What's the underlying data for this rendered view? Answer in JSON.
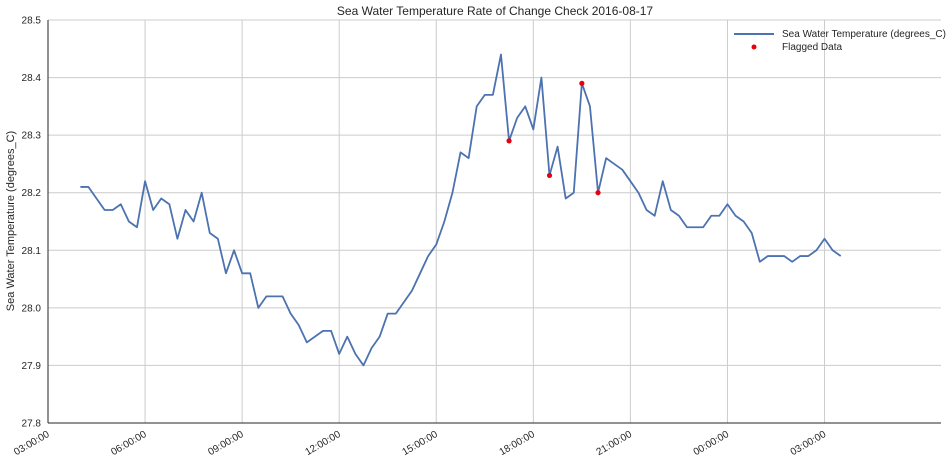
{
  "chart_data": {
    "type": "line",
    "title": "Sea Water Temperature Rate of Change Check 2016-08-17",
    "ylabel": "Sea Water Temperature (degrees_C)",
    "xlabel": "",
    "ylim": [
      27.8,
      28.5
    ],
    "yticks": [
      "27.8",
      "27.9",
      "28.0",
      "28.1",
      "28.2",
      "28.3",
      "28.4",
      "28.5"
    ],
    "xlim_hours": [
      3,
      30.6
    ],
    "xticks": [
      {
        "hour": 3,
        "label": "03:00:00"
      },
      {
        "hour": 6,
        "label": "06:00:00"
      },
      {
        "hour": 9,
        "label": "09:00:00"
      },
      {
        "hour": 12,
        "label": "12:00:00"
      },
      {
        "hour": 15,
        "label": "15:00:00"
      },
      {
        "hour": 18,
        "label": "18:00:00"
      },
      {
        "hour": 21,
        "label": "21:00:00"
      },
      {
        "hour": 24,
        "label": "00:00:00"
      },
      {
        "hour": 27,
        "label": "03:00:00"
      }
    ],
    "grid": true,
    "legend_position": "top-right",
    "series": [
      {
        "name": "Sea Water Temperature (degrees_C)",
        "kind": "line",
        "color": "#4c72b0",
        "x": [
          4.0,
          4.25,
          4.5,
          4.75,
          5.0,
          5.25,
          5.5,
          5.75,
          6.0,
          6.25,
          6.5,
          6.75,
          7.0,
          7.25,
          7.5,
          7.75,
          8.0,
          8.25,
          8.5,
          8.75,
          9.0,
          9.25,
          9.5,
          9.75,
          10.0,
          10.25,
          10.5,
          10.75,
          11.0,
          11.25,
          11.5,
          11.75,
          12.0,
          12.25,
          12.5,
          12.75,
          13.0,
          13.25,
          13.5,
          13.75,
          14.0,
          14.25,
          14.5,
          14.75,
          15.0,
          15.25,
          15.5,
          15.75,
          16.0,
          16.25,
          16.5,
          16.75,
          17.0,
          17.25,
          17.5,
          17.75,
          18.0,
          18.25,
          18.5,
          18.75,
          19.0,
          19.25,
          19.5,
          19.75,
          20.0,
          20.25,
          20.5,
          20.75,
          21.0,
          21.25,
          21.5,
          21.75,
          22.0,
          22.25,
          22.5,
          22.75,
          23.0,
          23.25,
          23.5,
          23.75,
          24.0,
          24.25,
          24.5,
          24.75,
          25.0,
          25.25,
          25.5,
          25.75,
          26.0,
          26.25,
          26.5,
          26.75,
          27.0,
          27.25,
          27.5
        ],
        "values": [
          28.21,
          28.21,
          28.19,
          28.17,
          28.17,
          28.18,
          28.15,
          28.14,
          28.22,
          28.17,
          28.19,
          28.18,
          28.12,
          28.17,
          28.15,
          28.2,
          28.13,
          28.12,
          28.06,
          28.1,
          28.06,
          28.06,
          28.0,
          28.02,
          28.02,
          28.02,
          27.99,
          27.97,
          27.94,
          27.95,
          27.96,
          27.96,
          27.92,
          27.95,
          27.92,
          27.9,
          27.93,
          27.95,
          27.99,
          27.99,
          28.01,
          28.03,
          28.06,
          28.09,
          28.11,
          28.15,
          28.2,
          28.27,
          28.26,
          28.35,
          28.37,
          28.37,
          28.44,
          28.29,
          28.33,
          28.35,
          28.31,
          28.4,
          28.23,
          28.28,
          28.19,
          28.2,
          28.39,
          28.35,
          28.2,
          28.26,
          28.25,
          28.24,
          28.22,
          28.2,
          28.17,
          28.16,
          28.22,
          28.17,
          28.16,
          28.14,
          28.14,
          28.14,
          28.16,
          28.16,
          28.18,
          28.16,
          28.15,
          28.13,
          28.08,
          28.09,
          28.09,
          28.09,
          28.08,
          28.09,
          28.09,
          28.1,
          28.12,
          28.1,
          28.09
        ]
      },
      {
        "name": "Flagged Data",
        "kind": "scatter",
        "color": "#e8000b",
        "x": [
          17.25,
          18.5,
          19.5,
          20.0
        ],
        "values": [
          28.29,
          28.23,
          28.39,
          28.2
        ]
      }
    ]
  }
}
